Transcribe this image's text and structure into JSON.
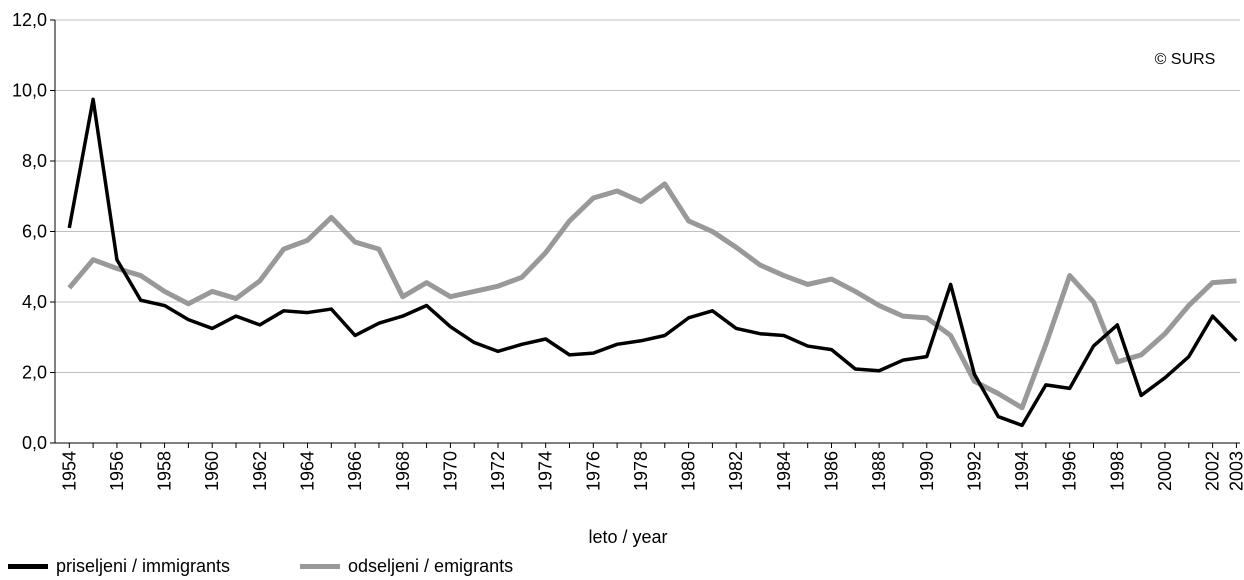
{
  "chart_data": {
    "type": "line",
    "xlabel": "leto / year",
    "ylabel": "",
    "ylim": [
      0,
      12
    ],
    "yticks": [
      "0,0",
      "2,0",
      "4,0",
      "6,0",
      "8,0",
      "10,0",
      "12,0"
    ],
    "yticks_values": [
      0,
      2,
      4,
      6,
      8,
      10,
      12
    ],
    "grid": true,
    "legend_position": "bottom-left",
    "copyright": "© SURS",
    "xtick_labels": [
      "1954",
      "1956",
      "1958",
      "1960",
      "1962",
      "1964",
      "1966",
      "1968",
      "1970",
      "1972",
      "1974",
      "1976",
      "1978",
      "1980",
      "1982",
      "1984",
      "1986",
      "1988",
      "1990",
      "1992",
      "1994",
      "1996",
      "1998",
      "2000",
      "2002",
      "2003"
    ],
    "x": [
      1954,
      1955,
      1956,
      1957,
      1958,
      1959,
      1960,
      1961,
      1962,
      1963,
      1964,
      1965,
      1966,
      1967,
      1968,
      1969,
      1970,
      1971,
      1972,
      1973,
      1974,
      1975,
      1976,
      1977,
      1978,
      1979,
      1980,
      1981,
      1982,
      1983,
      1984,
      1985,
      1986,
      1987,
      1988,
      1989,
      1990,
      1991,
      1992,
      1993,
      1994,
      1995,
      1996,
      1997,
      1998,
      1999,
      2000,
      2001,
      2002,
      2003
    ],
    "series": [
      {
        "name": "priseljeni / immigrants",
        "color": "#000000",
        "values": [
          6.1,
          9.75,
          5.2,
          4.05,
          3.9,
          3.5,
          3.25,
          3.6,
          3.35,
          3.75,
          3.7,
          3.8,
          3.05,
          3.4,
          3.6,
          3.9,
          3.3,
          2.85,
          2.6,
          2.8,
          2.95,
          2.5,
          2.55,
          2.8,
          2.9,
          3.05,
          3.55,
          3.75,
          3.25,
          3.1,
          3.05,
          2.75,
          2.65,
          2.1,
          2.05,
          2.35,
          2.45,
          4.5,
          1.95,
          0.75,
          0.5,
          1.65,
          1.55,
          2.75,
          3.35,
          1.35,
          1.85,
          2.45,
          3.6,
          2.9
        ]
      },
      {
        "name": "odseljeni / emigrants",
        "color": "#999999",
        "values": [
          4.4,
          5.2,
          4.95,
          4.75,
          4.3,
          3.95,
          4.3,
          4.1,
          4.6,
          5.5,
          5.75,
          6.4,
          5.7,
          5.5,
          4.15,
          4.55,
          4.15,
          4.3,
          4.45,
          4.7,
          5.4,
          6.3,
          6.95,
          7.15,
          6.85,
          7.35,
          6.3,
          6.0,
          5.55,
          5.05,
          4.75,
          4.5,
          4.65,
          4.3,
          3.9,
          3.6,
          3.55,
          3.05,
          1.75,
          1.4,
          1.0,
          2.8,
          4.75,
          4.0,
          2.3,
          2.5,
          3.1,
          3.9,
          4.55,
          4.6
        ]
      }
    ]
  }
}
